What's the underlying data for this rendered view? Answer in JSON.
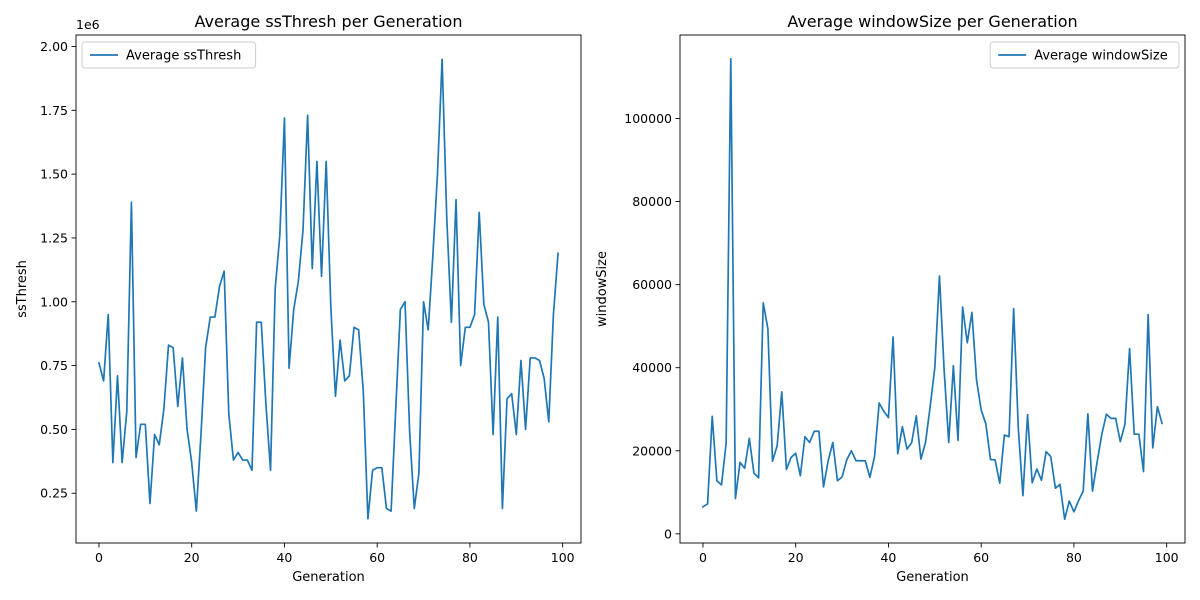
{
  "chart_data": [
    {
      "type": "line",
      "title": "Average ssThresh per Generation",
      "xlabel": "Generation",
      "ylabel": "ssThresh",
      "y_scale_label": "1e6",
      "xlim": [
        -4.95,
        103.95
      ],
      "ylim": [
        0.055,
        2.045
      ],
      "x_ticks": [
        0,
        20,
        40,
        60,
        80,
        100
      ],
      "x_tick_labels": [
        "0",
        "20",
        "40",
        "60",
        "80",
        "100"
      ],
      "y_ticks": [
        0.25,
        0.5,
        0.75,
        1.0,
        1.25,
        1.5,
        1.75,
        2.0
      ],
      "y_tick_labels": [
        "0.25",
        "0.50",
        "0.75",
        "1.00",
        "1.25",
        "1.50",
        "1.75",
        "2.00"
      ],
      "legend_position": "upper-left",
      "grid": false,
      "series": [
        {
          "name": "Average ssThresh",
          "color": "#1f77b4",
          "x": [
            0,
            1,
            2,
            3,
            4,
            5,
            6,
            7,
            8,
            9,
            10,
            11,
            12,
            13,
            14,
            15,
            16,
            17,
            18,
            19,
            20,
            21,
            22,
            23,
            24,
            25,
            26,
            27,
            28,
            29,
            30,
            31,
            32,
            33,
            34,
            35,
            36,
            37,
            38,
            39,
            40,
            41,
            42,
            43,
            44,
            45,
            46,
            47,
            48,
            49,
            50,
            51,
            52,
            53,
            54,
            55,
            56,
            57,
            58,
            59,
            60,
            61,
            62,
            63,
            64,
            65,
            66,
            67,
            68,
            69,
            70,
            71,
            72,
            73,
            74,
            75,
            76,
            77,
            78,
            79,
            80,
            81,
            82,
            83,
            84,
            85,
            86,
            87,
            88,
            89,
            90,
            91,
            92,
            93,
            94,
            95,
            96,
            97,
            98,
            99
          ],
          "y": [
            0.76,
            0.69,
            0.95,
            0.37,
            0.71,
            0.37,
            0.57,
            1.39,
            0.39,
            0.52,
            0.52,
            0.21,
            0.48,
            0.44,
            0.58,
            0.83,
            0.82,
            0.59,
            0.78,
            0.5,
            0.37,
            0.18,
            0.48,
            0.82,
            0.94,
            0.94,
            1.06,
            1.12,
            0.56,
            0.38,
            0.41,
            0.38,
            0.38,
            0.34,
            0.92,
            0.92,
            0.6,
            0.34,
            1.05,
            1.26,
            1.72,
            0.74,
            0.97,
            1.08,
            1.28,
            1.73,
            1.13,
            1.55,
            1.1,
            1.55,
            0.98,
            0.63,
            0.85,
            0.69,
            0.71,
            0.9,
            0.89,
            0.65,
            0.15,
            0.34,
            0.35,
            0.35,
            0.19,
            0.18,
            0.58,
            0.97,
            1.0,
            0.49,
            0.19,
            0.33,
            1.0,
            0.89,
            1.18,
            1.5,
            1.95,
            1.33,
            0.92,
            1.4,
            0.75,
            0.9,
            0.9,
            0.95,
            1.35,
            0.99,
            0.92,
            0.48,
            0.94,
            0.19,
            0.62,
            0.64,
            0.48,
            0.77,
            0.5,
            0.78,
            0.78,
            0.77,
            0.7,
            0.53,
            0.95,
            1.19
          ]
        }
      ]
    },
    {
      "type": "line",
      "title": "Average windowSize per Generation",
      "xlabel": "Generation",
      "ylabel": "windowSize",
      "xlim": [
        -4.95,
        103.95
      ],
      "ylim": [
        -2200,
        120100
      ],
      "x_ticks": [
        0,
        20,
        40,
        60,
        80,
        100
      ],
      "x_tick_labels": [
        "0",
        "20",
        "40",
        "60",
        "80",
        "100"
      ],
      "y_ticks": [
        0,
        20000,
        40000,
        60000,
        80000,
        100000
      ],
      "y_tick_labels": [
        "0",
        "20000",
        "40000",
        "60000",
        "80000",
        "100000"
      ],
      "legend_position": "upper-right",
      "grid": false,
      "series": [
        {
          "name": "Average windowSize",
          "color": "#1f77b4",
          "x": [
            0,
            1,
            2,
            3,
            4,
            5,
            6,
            7,
            8,
            9,
            10,
            11,
            12,
            13,
            14,
            15,
            16,
            17,
            18,
            19,
            20,
            21,
            22,
            23,
            24,
            25,
            26,
            27,
            28,
            29,
            30,
            31,
            32,
            33,
            34,
            35,
            36,
            37,
            38,
            39,
            40,
            41,
            42,
            43,
            44,
            45,
            46,
            47,
            48,
            49,
            50,
            51,
            52,
            53,
            54,
            55,
            56,
            57,
            58,
            59,
            60,
            61,
            62,
            63,
            64,
            65,
            66,
            67,
            68,
            69,
            70,
            71,
            72,
            73,
            74,
            75,
            76,
            77,
            78,
            79,
            80,
            81,
            82,
            83,
            84,
            85,
            86,
            87,
            88,
            89,
            90,
            91,
            92,
            93,
            94,
            95,
            96,
            97,
            98,
            99
          ],
          "y": [
            6500,
            7200,
            28300,
            12800,
            11800,
            21800,
            114400,
            8500,
            17200,
            15800,
            23000,
            14600,
            13500,
            55600,
            49400,
            17500,
            21200,
            34200,
            15500,
            18400,
            19400,
            14000,
            23400,
            22000,
            24700,
            24700,
            11300,
            17600,
            22000,
            12800,
            13700,
            17800,
            20000,
            17600,
            17600,
            17600,
            13600,
            18600,
            31500,
            29500,
            28000,
            47400,
            19300,
            25800,
            20400,
            21900,
            28400,
            18000,
            22000,
            30700,
            40000,
            62100,
            39600,
            22000,
            40500,
            22500,
            54600,
            46000,
            53300,
            37000,
            29800,
            26500,
            17900,
            17800,
            12200,
            23800,
            23400,
            54200,
            25500,
            9200,
            28700,
            12300,
            15600,
            12900,
            19800,
            18600,
            11000,
            11900,
            3500,
            7900,
            5300,
            8000,
            10300,
            28900,
            10300,
            17300,
            23900,
            28800,
            27800,
            27800,
            22200,
            26400,
            44600,
            24000,
            24000,
            15000,
            52800,
            20700,
            30600,
            26600
          ]
        }
      ]
    }
  ]
}
